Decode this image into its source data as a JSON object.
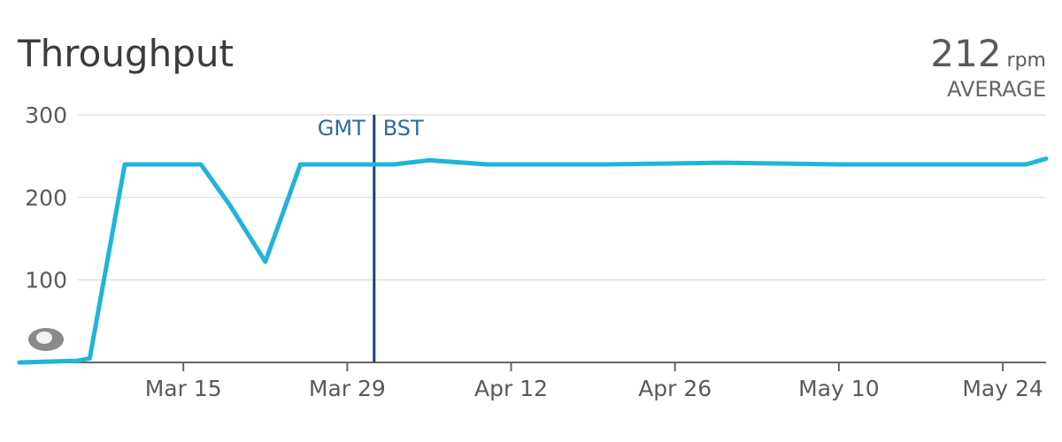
{
  "chart_data": {
    "type": "line",
    "title": "Throughput",
    "summary": {
      "value": "212",
      "unit": "rpm",
      "label": "AVERAGE"
    },
    "ylim": [
      0,
      300
    ],
    "y_ticks": [
      100,
      200,
      300
    ],
    "x_ticks": [
      "Mar 15",
      "Mar 29",
      "Apr 12",
      "Apr 26",
      "May 10",
      "May 24"
    ],
    "x_tick_days": [
      14,
      28,
      42,
      56,
      70,
      84
    ],
    "x_range_days": [
      0,
      87.7
    ],
    "annotation": {
      "day": 30.3,
      "left_label": "GMT",
      "right_label": "BST"
    },
    "series": [
      {
        "name": "Throughput",
        "color": "#1fb5d9",
        "points": [
          [
            0,
            0
          ],
          [
            5,
            2
          ],
          [
            6,
            5
          ],
          [
            9,
            240
          ],
          [
            15,
            240
          ],
          [
            15.5,
            240
          ],
          [
            18,
            190
          ],
          [
            21,
            122
          ],
          [
            24,
            240
          ],
          [
            25,
            240
          ],
          [
            30,
            240
          ],
          [
            32,
            240
          ],
          [
            35,
            245
          ],
          [
            40,
            240
          ],
          [
            50,
            240
          ],
          [
            60,
            242
          ],
          [
            70,
            240
          ],
          [
            80,
            240
          ],
          [
            84,
            240
          ],
          [
            86,
            240
          ],
          [
            87.7,
            247
          ]
        ]
      }
    ]
  }
}
